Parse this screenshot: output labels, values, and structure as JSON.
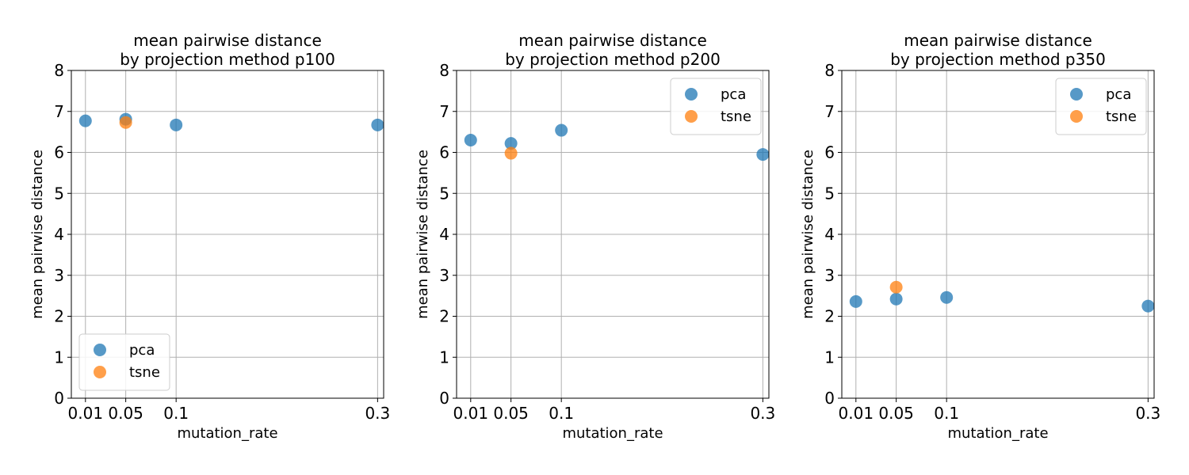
{
  "chart_data": [
    {
      "type": "scatter",
      "title": [
        "mean pairwise distance",
        "by projection method p100"
      ],
      "xlabel": "mutation_rate",
      "ylabel": "mean pairwise distance",
      "xlim": [
        -0.004,
        0.306
      ],
      "ylim": [
        0,
        8
      ],
      "xticks": [
        0.01,
        0.05,
        0.1,
        0.3
      ],
      "xtick_labels": [
        "0.01",
        "0.05",
        "0.1",
        "0.3"
      ],
      "yticks": [
        0,
        1,
        2,
        3,
        4,
        5,
        6,
        7,
        8
      ],
      "ytick_labels": [
        "0",
        "1",
        "2",
        "3",
        "4",
        "5",
        "6",
        "7",
        "8"
      ],
      "grid": true,
      "legend_position": "lower-left",
      "series": [
        {
          "name": "pca",
          "color": "#1f77b4",
          "points": [
            [
              0.01,
              6.77
            ],
            [
              0.05,
              6.81
            ],
            [
              0.1,
              6.67
            ],
            [
              0.3,
              6.67
            ]
          ]
        },
        {
          "name": "tsne",
          "color": "#ff7f0e",
          "points": [
            [
              0.05,
              6.73
            ]
          ]
        }
      ]
    },
    {
      "type": "scatter",
      "title": [
        "mean pairwise distance",
        "by projection method p200"
      ],
      "xlabel": "mutation_rate",
      "ylabel": "mean pairwise distance",
      "xlim": [
        -0.004,
        0.306
      ],
      "ylim": [
        0,
        8
      ],
      "xticks": [
        0.01,
        0.05,
        0.1,
        0.3
      ],
      "xtick_labels": [
        "0.01",
        "0.05",
        "0.1",
        "0.3"
      ],
      "yticks": [
        0,
        1,
        2,
        3,
        4,
        5,
        6,
        7,
        8
      ],
      "ytick_labels": [
        "0",
        "1",
        "2",
        "3",
        "4",
        "5",
        "6",
        "7",
        "8"
      ],
      "grid": true,
      "legend_position": "upper-right",
      "series": [
        {
          "name": "pca",
          "color": "#1f77b4",
          "points": [
            [
              0.01,
              6.3
            ],
            [
              0.05,
              6.22
            ],
            [
              0.1,
              6.54
            ],
            [
              0.3,
              5.95
            ]
          ]
        },
        {
          "name": "tsne",
          "color": "#ff7f0e",
          "points": [
            [
              0.05,
              5.98
            ]
          ]
        }
      ]
    },
    {
      "type": "scatter",
      "title": [
        "mean pairwise distance",
        "by projection method p350"
      ],
      "xlabel": "mutation_rate",
      "ylabel": "mean pairwise distance",
      "xlim": [
        -0.004,
        0.306
      ],
      "ylim": [
        0,
        8
      ],
      "xticks": [
        0.01,
        0.05,
        0.1,
        0.3
      ],
      "xtick_labels": [
        "0.01",
        "0.05",
        "0.1",
        "0.3"
      ],
      "yticks": [
        0,
        1,
        2,
        3,
        4,
        5,
        6,
        7,
        8
      ],
      "ytick_labels": [
        "0",
        "1",
        "2",
        "3",
        "4",
        "5",
        "6",
        "7",
        "8"
      ],
      "grid": true,
      "legend_position": "upper-right",
      "series": [
        {
          "name": "pca",
          "color": "#1f77b4",
          "points": [
            [
              0.01,
              2.36
            ],
            [
              0.05,
              2.42
            ],
            [
              0.1,
              2.46
            ],
            [
              0.3,
              2.25
            ]
          ]
        },
        {
          "name": "tsne",
          "color": "#ff7f0e",
          "points": [
            [
              0.05,
              2.71
            ]
          ]
        }
      ]
    }
  ]
}
